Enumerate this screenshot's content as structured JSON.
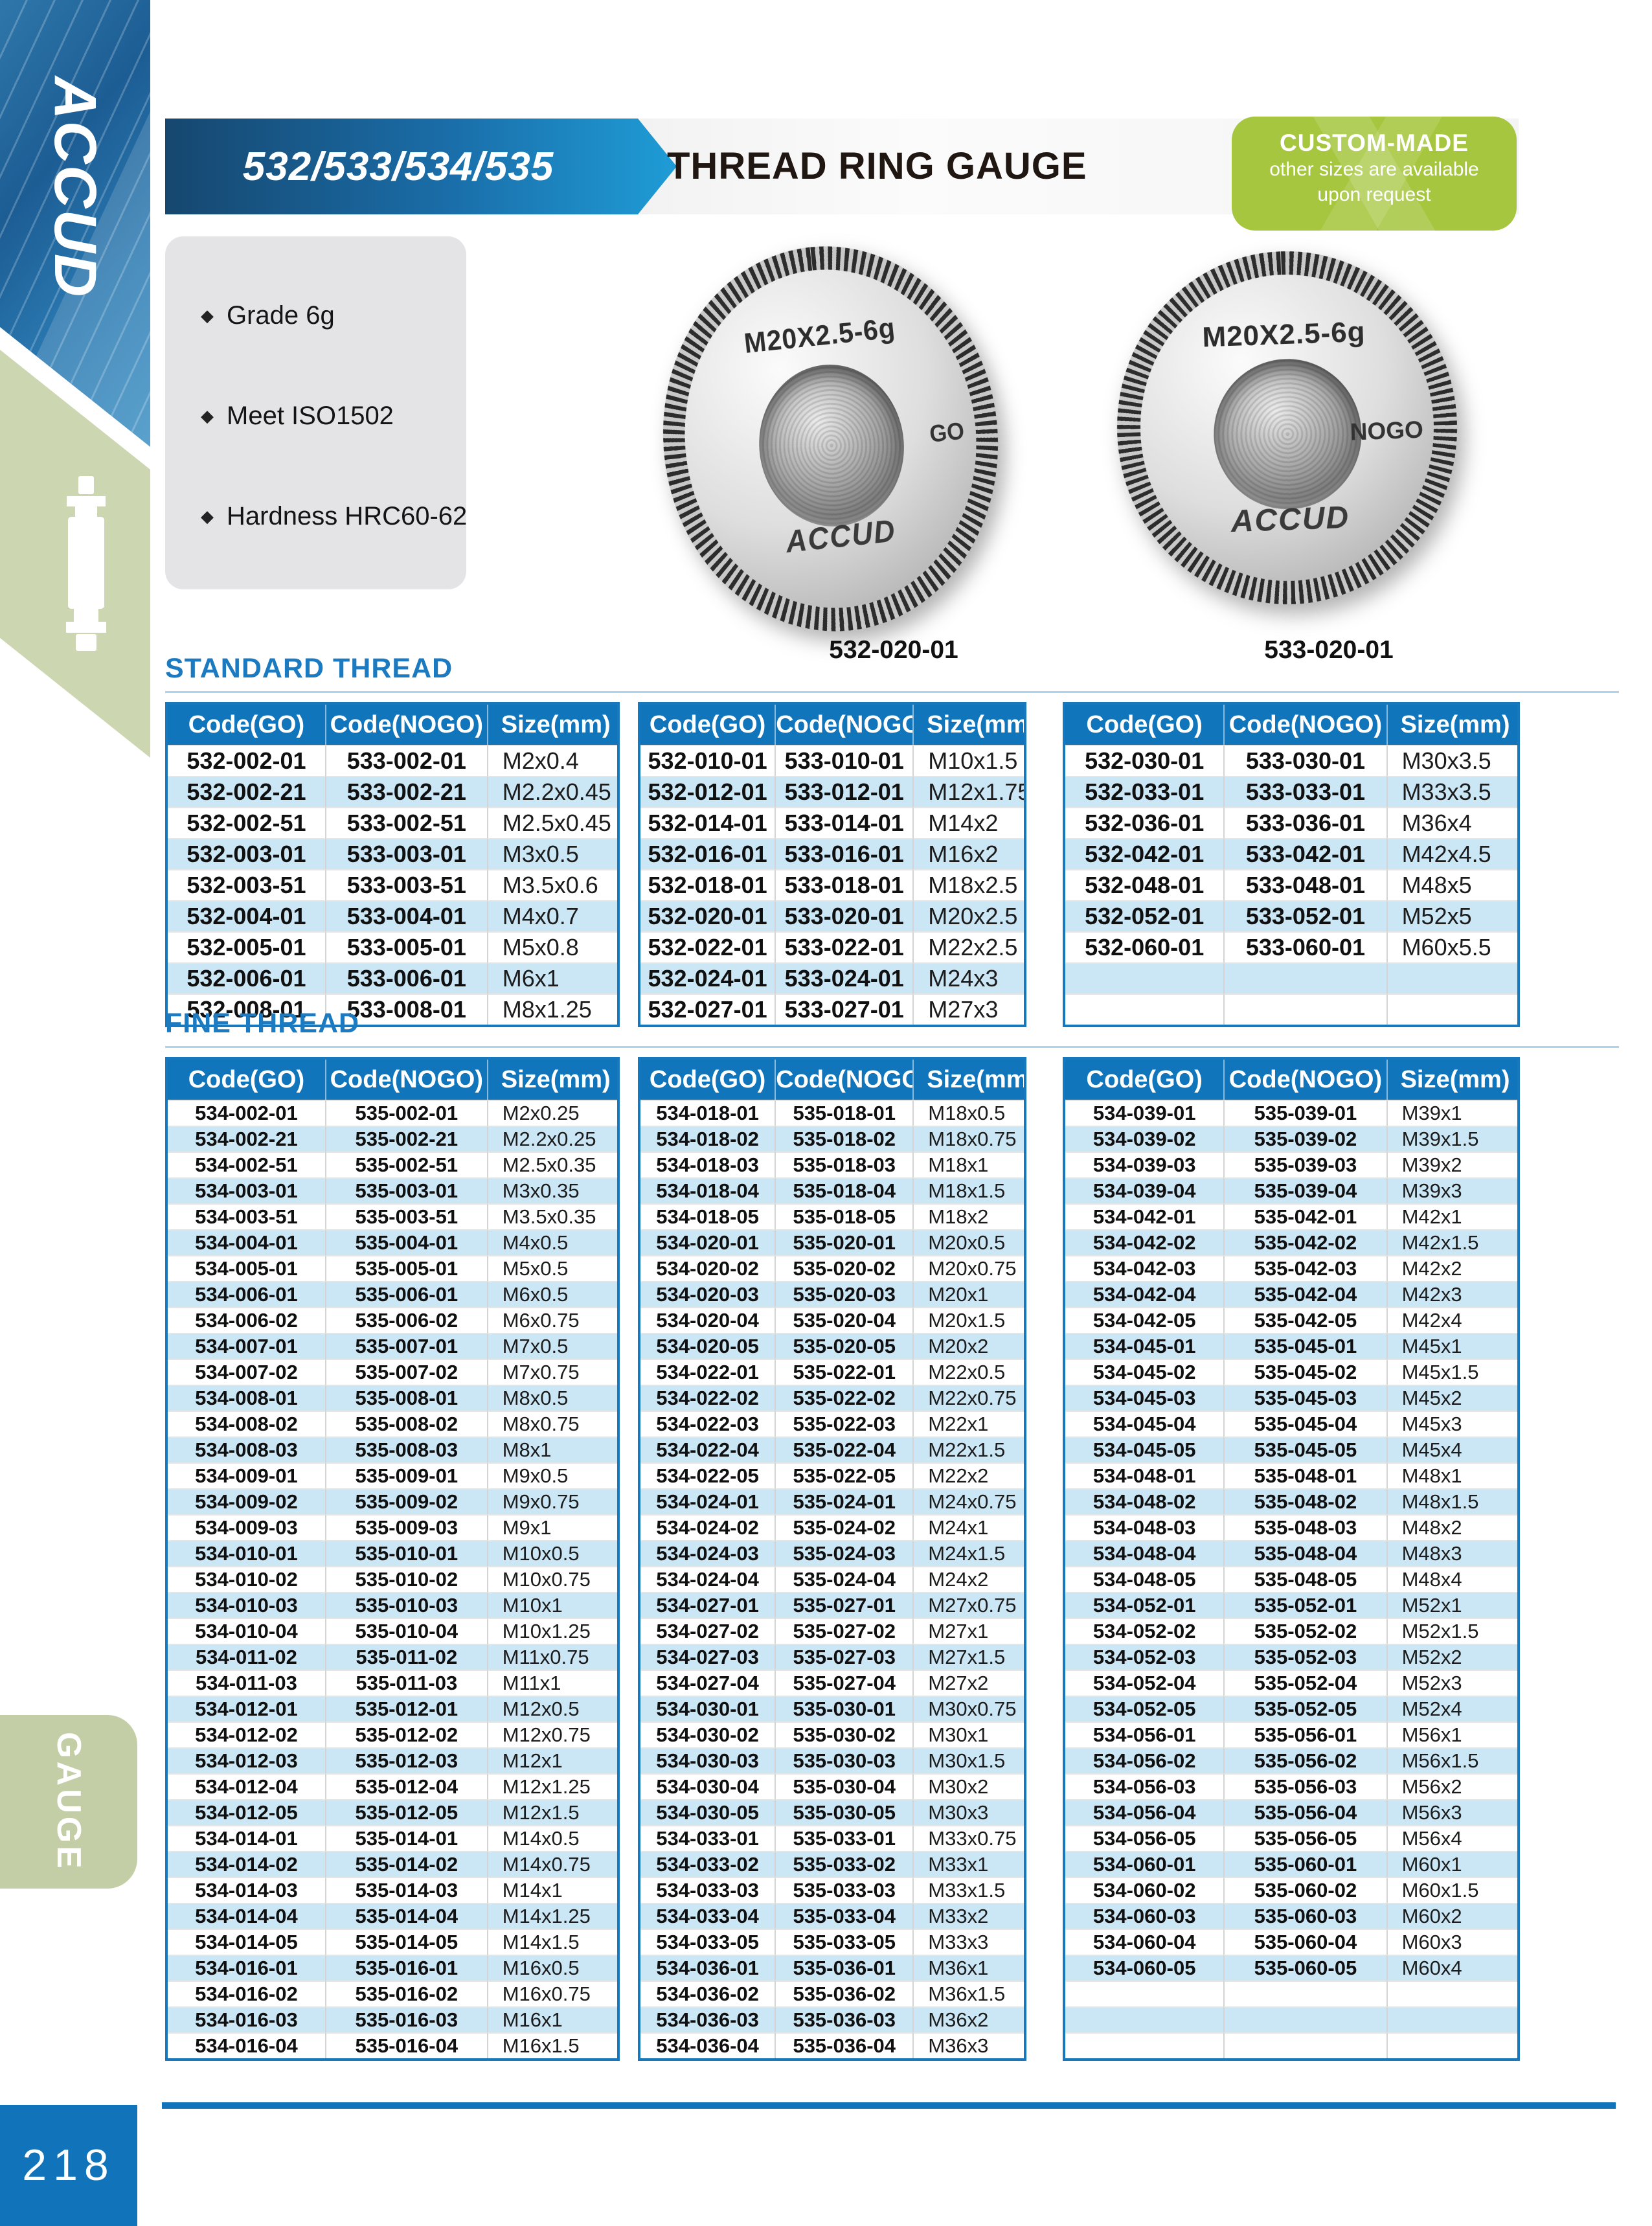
{
  "page": {
    "number": "218"
  },
  "sidebar": {
    "brand": "ACCUD",
    "category_tab": "GAUGE"
  },
  "header": {
    "model_range": "532/533/534/535",
    "title": "THREAD RING GAUGE",
    "badge": {
      "title": "CUSTOM-MADE",
      "line1": "other sizes are available",
      "line2": "upon request"
    }
  },
  "features": [
    "Grade 6g",
    "Meet ISO1502",
    "Hardness HRC60-62"
  ],
  "products": [
    {
      "marking": "M20X2.5-6g",
      "side_label": "GO",
      "brand": "ACCUD",
      "caption": "532-020-01"
    },
    {
      "marking": "M20X2.5-6g",
      "side_label": "NOGO",
      "brand": "ACCUD",
      "caption": "533-020-01"
    }
  ],
  "colors": {
    "accent_blue": "#1075ba",
    "stripe_blue": "#cbe7f6",
    "badge_green": "#a6c63f",
    "sidebar_green": "#ccd6b0"
  },
  "sections": [
    {
      "title": "STANDARD THREAD",
      "columns": [
        "Code(GO)",
        "Code(NOGO)",
        "Size(mm)"
      ],
      "tables": [
        {
          "rows": [
            [
              "532-002-01",
              "533-002-01",
              "M2x0.4"
            ],
            [
              "532-002-21",
              "533-002-21",
              "M2.2x0.45"
            ],
            [
              "532-002-51",
              "533-002-51",
              "M2.5x0.45"
            ],
            [
              "532-003-01",
              "533-003-01",
              "M3x0.5"
            ],
            [
              "532-003-51",
              "533-003-51",
              "M3.5x0.6"
            ],
            [
              "532-004-01",
              "533-004-01",
              "M4x0.7"
            ],
            [
              "532-005-01",
              "533-005-01",
              "M5x0.8"
            ],
            [
              "532-006-01",
              "533-006-01",
              "M6x1"
            ],
            [
              "532-008-01",
              "533-008-01",
              "M8x1.25"
            ]
          ]
        },
        {
          "rows": [
            [
              "532-010-01",
              "533-010-01",
              "M10x1.5"
            ],
            [
              "532-012-01",
              "533-012-01",
              "M12x1.75"
            ],
            [
              "532-014-01",
              "533-014-01",
              "M14x2"
            ],
            [
              "532-016-01",
              "533-016-01",
              "M16x2"
            ],
            [
              "532-018-01",
              "533-018-01",
              "M18x2.5"
            ],
            [
              "532-020-01",
              "533-020-01",
              "M20x2.5"
            ],
            [
              "532-022-01",
              "533-022-01",
              "M22x2.5"
            ],
            [
              "532-024-01",
              "533-024-01",
              "M24x3"
            ],
            [
              "532-027-01",
              "533-027-01",
              "M27x3"
            ]
          ]
        },
        {
          "rows": [
            [
              "532-030-01",
              "533-030-01",
              "M30x3.5"
            ],
            [
              "532-033-01",
              "533-033-01",
              "M33x3.5"
            ],
            [
              "532-036-01",
              "533-036-01",
              "M36x4"
            ],
            [
              "532-042-01",
              "533-042-01",
              "M42x4.5"
            ],
            [
              "532-048-01",
              "533-048-01",
              "M48x5"
            ],
            [
              "532-052-01",
              "533-052-01",
              "M52x5"
            ],
            [
              "532-060-01",
              "533-060-01",
              "M60x5.5"
            ],
            [
              "",
              "",
              ""
            ],
            [
              "",
              "",
              ""
            ]
          ]
        }
      ]
    },
    {
      "title": "FINE THREAD",
      "columns": [
        "Code(GO)",
        "Code(NOGO)",
        "Size(mm)"
      ],
      "tables": [
        {
          "rows": [
            [
              "534-002-01",
              "535-002-01",
              "M2x0.25"
            ],
            [
              "534-002-21",
              "535-002-21",
              "M2.2x0.25"
            ],
            [
              "534-002-51",
              "535-002-51",
              "M2.5x0.35"
            ],
            [
              "534-003-01",
              "535-003-01",
              "M3x0.35"
            ],
            [
              "534-003-51",
              "535-003-51",
              "M3.5x0.35"
            ],
            [
              "534-004-01",
              "535-004-01",
              "M4x0.5"
            ],
            [
              "534-005-01",
              "535-005-01",
              "M5x0.5"
            ],
            [
              "534-006-01",
              "535-006-01",
              "M6x0.5"
            ],
            [
              "534-006-02",
              "535-006-02",
              "M6x0.75"
            ],
            [
              "534-007-01",
              "535-007-01",
              "M7x0.5"
            ],
            [
              "534-007-02",
              "535-007-02",
              "M7x0.75"
            ],
            [
              "534-008-01",
              "535-008-01",
              "M8x0.5"
            ],
            [
              "534-008-02",
              "535-008-02",
              "M8x0.75"
            ],
            [
              "534-008-03",
              "535-008-03",
              "M8x1"
            ],
            [
              "534-009-01",
              "535-009-01",
              "M9x0.5"
            ],
            [
              "534-009-02",
              "535-009-02",
              "M9x0.75"
            ],
            [
              "534-009-03",
              "535-009-03",
              "M9x1"
            ],
            [
              "534-010-01",
              "535-010-01",
              "M10x0.5"
            ],
            [
              "534-010-02",
              "535-010-02",
              "M10x0.75"
            ],
            [
              "534-010-03",
              "535-010-03",
              "M10x1"
            ],
            [
              "534-010-04",
              "535-010-04",
              "M10x1.25"
            ],
            [
              "534-011-02",
              "535-011-02",
              "M11x0.75"
            ],
            [
              "534-011-03",
              "535-011-03",
              "M11x1"
            ],
            [
              "534-012-01",
              "535-012-01",
              "M12x0.5"
            ],
            [
              "534-012-02",
              "535-012-02",
              "M12x0.75"
            ],
            [
              "534-012-03",
              "535-012-03",
              "M12x1"
            ],
            [
              "534-012-04",
              "535-012-04",
              "M12x1.25"
            ],
            [
              "534-012-05",
              "535-012-05",
              "M12x1.5"
            ],
            [
              "534-014-01",
              "535-014-01",
              "M14x0.5"
            ],
            [
              "534-014-02",
              "535-014-02",
              "M14x0.75"
            ],
            [
              "534-014-03",
              "535-014-03",
              "M14x1"
            ],
            [
              "534-014-04",
              "535-014-04",
              "M14x1.25"
            ],
            [
              "534-014-05",
              "535-014-05",
              "M14x1.5"
            ],
            [
              "534-016-01",
              "535-016-01",
              "M16x0.5"
            ],
            [
              "534-016-02",
              "535-016-02",
              "M16x0.75"
            ],
            [
              "534-016-03",
              "535-016-03",
              "M16x1"
            ],
            [
              "534-016-04",
              "535-016-04",
              "M16x1.5"
            ]
          ]
        },
        {
          "rows": [
            [
              "534-018-01",
              "535-018-01",
              "M18x0.5"
            ],
            [
              "534-018-02",
              "535-018-02",
              "M18x0.75"
            ],
            [
              "534-018-03",
              "535-018-03",
              "M18x1"
            ],
            [
              "534-018-04",
              "535-018-04",
              "M18x1.5"
            ],
            [
              "534-018-05",
              "535-018-05",
              "M18x2"
            ],
            [
              "534-020-01",
              "535-020-01",
              "M20x0.5"
            ],
            [
              "534-020-02",
              "535-020-02",
              "M20x0.75"
            ],
            [
              "534-020-03",
              "535-020-03",
              "M20x1"
            ],
            [
              "534-020-04",
              "535-020-04",
              "M20x1.5"
            ],
            [
              "534-020-05",
              "535-020-05",
              "M20x2"
            ],
            [
              "534-022-01",
              "535-022-01",
              "M22x0.5"
            ],
            [
              "534-022-02",
              "535-022-02",
              "M22x0.75"
            ],
            [
              "534-022-03",
              "535-022-03",
              "M22x1"
            ],
            [
              "534-022-04",
              "535-022-04",
              "M22x1.5"
            ],
            [
              "534-022-05",
              "535-022-05",
              "M22x2"
            ],
            [
              "534-024-01",
              "535-024-01",
              "M24x0.75"
            ],
            [
              "534-024-02",
              "535-024-02",
              "M24x1"
            ],
            [
              "534-024-03",
              "535-024-03",
              "M24x1.5"
            ],
            [
              "534-024-04",
              "535-024-04",
              "M24x2"
            ],
            [
              "534-027-01",
              "535-027-01",
              "M27x0.75"
            ],
            [
              "534-027-02",
              "535-027-02",
              "M27x1"
            ],
            [
              "534-027-03",
              "535-027-03",
              "M27x1.5"
            ],
            [
              "534-027-04",
              "535-027-04",
              "M27x2"
            ],
            [
              "534-030-01",
              "535-030-01",
              "M30x0.75"
            ],
            [
              "534-030-02",
              "535-030-02",
              "M30x1"
            ],
            [
              "534-030-03",
              "535-030-03",
              "M30x1.5"
            ],
            [
              "534-030-04",
              "535-030-04",
              "M30x2"
            ],
            [
              "534-030-05",
              "535-030-05",
              "M30x3"
            ],
            [
              "534-033-01",
              "535-033-01",
              "M33x0.75"
            ],
            [
              "534-033-02",
              "535-033-02",
              "M33x1"
            ],
            [
              "534-033-03",
              "535-033-03",
              "M33x1.5"
            ],
            [
              "534-033-04",
              "535-033-04",
              "M33x2"
            ],
            [
              "534-033-05",
              "535-033-05",
              "M33x3"
            ],
            [
              "534-036-01",
              "535-036-01",
              "M36x1"
            ],
            [
              "534-036-02",
              "535-036-02",
              "M36x1.5"
            ],
            [
              "534-036-03",
              "535-036-03",
              "M36x2"
            ],
            [
              "534-036-04",
              "535-036-04",
              "M36x3"
            ]
          ]
        },
        {
          "rows": [
            [
              "534-039-01",
              "535-039-01",
              "M39x1"
            ],
            [
              "534-039-02",
              "535-039-02",
              "M39x1.5"
            ],
            [
              "534-039-03",
              "535-039-03",
              "M39x2"
            ],
            [
              "534-039-04",
              "535-039-04",
              "M39x3"
            ],
            [
              "534-042-01",
              "535-042-01",
              "M42x1"
            ],
            [
              "534-042-02",
              "535-042-02",
              "M42x1.5"
            ],
            [
              "534-042-03",
              "535-042-03",
              "M42x2"
            ],
            [
              "534-042-04",
              "535-042-04",
              "M42x3"
            ],
            [
              "534-042-05",
              "535-042-05",
              "M42x4"
            ],
            [
              "534-045-01",
              "535-045-01",
              "M45x1"
            ],
            [
              "534-045-02",
              "535-045-02",
              "M45x1.5"
            ],
            [
              "534-045-03",
              "535-045-03",
              "M45x2"
            ],
            [
              "534-045-04",
              "535-045-04",
              "M45x3"
            ],
            [
              "534-045-05",
              "535-045-05",
              "M45x4"
            ],
            [
              "534-048-01",
              "535-048-01",
              "M48x1"
            ],
            [
              "534-048-02",
              "535-048-02",
              "M48x1.5"
            ],
            [
              "534-048-03",
              "535-048-03",
              "M48x2"
            ],
            [
              "534-048-04",
              "535-048-04",
              "M48x3"
            ],
            [
              "534-048-05",
              "535-048-05",
              "M48x4"
            ],
            [
              "534-052-01",
              "535-052-01",
              "M52x1"
            ],
            [
              "534-052-02",
              "535-052-02",
              "M52x1.5"
            ],
            [
              "534-052-03",
              "535-052-03",
              "M52x2"
            ],
            [
              "534-052-04",
              "535-052-04",
              "M52x3"
            ],
            [
              "534-052-05",
              "535-052-05",
              "M52x4"
            ],
            [
              "534-056-01",
              "535-056-01",
              "M56x1"
            ],
            [
              "534-056-02",
              "535-056-02",
              "M56x1.5"
            ],
            [
              "534-056-03",
              "535-056-03",
              "M56x2"
            ],
            [
              "534-056-04",
              "535-056-04",
              "M56x3"
            ],
            [
              "534-056-05",
              "535-056-05",
              "M56x4"
            ],
            [
              "534-060-01",
              "535-060-01",
              "M60x1"
            ],
            [
              "534-060-02",
              "535-060-02",
              "M60x1.5"
            ],
            [
              "534-060-03",
              "535-060-03",
              "M60x2"
            ],
            [
              "534-060-04",
              "535-060-04",
              "M60x3"
            ],
            [
              "534-060-05",
              "535-060-05",
              "M60x4"
            ],
            [
              "",
              "",
              ""
            ],
            [
              "",
              "",
              ""
            ],
            [
              "",
              "",
              ""
            ]
          ]
        }
      ]
    }
  ]
}
